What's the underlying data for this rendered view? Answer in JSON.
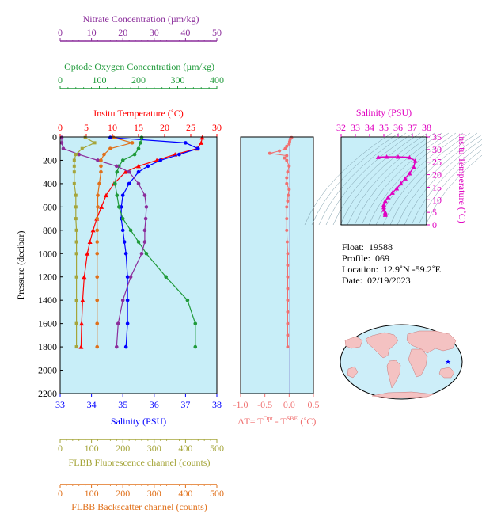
{
  "colors": {
    "nitrate": "#8b2d9b",
    "oxygen": "#1f9a3a",
    "temperature": "#ff0000",
    "salinity": "#0000ff",
    "fluorescence": "#a5a53a",
    "backscatter": "#e0701a",
    "delta_t": "#f07070",
    "magenta": "#e000c0",
    "panel_bg": "#c8eef8"
  },
  "axes": {
    "nitrate": {
      "label": "Nitrate Concentration (µm/kg)",
      "ticks": [
        "0",
        "10",
        "20",
        "30",
        "40",
        "50"
      ]
    },
    "oxygen": {
      "label": "Optode Oxygen Concentration (µm/kg)",
      "ticks": [
        "0",
        "100",
        "200",
        "300",
        "400"
      ]
    },
    "temperature": {
      "label": "Insitu Temperature (˚C)",
      "ticks": [
        "0",
        "5",
        "10",
        "15",
        "20",
        "25",
        "30"
      ]
    },
    "pressure": {
      "label": "Pressure (decibar)",
      "ticks": [
        "0",
        "200",
        "400",
        "600",
        "800",
        "1000",
        "1200",
        "1400",
        "1600",
        "1800",
        "2000",
        "2200"
      ]
    },
    "salinity": {
      "label": "Salinity (PSU)",
      "ticks": [
        "33",
        "34",
        "35",
        "36",
        "37",
        "38"
      ]
    },
    "delta_t": {
      "label_prefix": "ΔT= T",
      "label_sup1": "Opt",
      "label_mid": " - T",
      "label_sup2": "SBE",
      "label_suffix": " (˚C)",
      "ticks": [
        "-1.0",
        "-0.5",
        "0.0",
        "0.5"
      ]
    },
    "fluorescence": {
      "label": "FLBB Fluorescence channel (counts)",
      "ticks": [
        "0",
        "100",
        "200",
        "300",
        "400",
        "500"
      ]
    },
    "backscatter": {
      "label": "FLBB Backscatter channel (counts)",
      "ticks": [
        "0",
        "100",
        "200",
        "300",
        "400",
        "500"
      ]
    },
    "ts_salinity": {
      "label": "Salinity (PSU)",
      "ticks": [
        "32",
        "33",
        "34",
        "35",
        "36",
        "37",
        "38"
      ]
    },
    "ts_temperature": {
      "label": "Insitu Temperature (˚C)",
      "ticks": [
        "0",
        "5",
        "10",
        "15",
        "20",
        "25",
        "30",
        "35"
      ]
    }
  },
  "info": {
    "float_label": "Float:",
    "float_value": "19588",
    "profile_label": "Profile:",
    "profile_value": "069",
    "location_label": "Location:",
    "location_value": "12.9˚N  -59.2˚E",
    "date_label": "Date:",
    "date_value": "02/19/2023"
  },
  "chart_data": [
    {
      "type": "line",
      "title": "",
      "ylabel": "Pressure (decibar)",
      "ylim": [
        2200,
        0
      ],
      "pressure": [
        5,
        50,
        100,
        150,
        200,
        250,
        300,
        400,
        500,
        600,
        700,
        800,
        900,
        1000,
        1200,
        1400,
        1600,
        1800
      ],
      "series": [
        {
          "name": "Insitu Temperature (˚C)",
          "xlim": [
            0,
            30
          ],
          "values": [
            27.2,
            27.0,
            26.2,
            22.0,
            18.5,
            15.0,
            12.5,
            10.3,
            8.8,
            7.9,
            7.0,
            6.3,
            5.7,
            5.2,
            4.6,
            4.3,
            4.1,
            4.0
          ]
        },
        {
          "name": "Salinity (PSU)",
          "xlim": [
            33,
            38
          ],
          "values": [
            34.6,
            37.0,
            37.4,
            36.8,
            36.2,
            35.8,
            35.5,
            35.2,
            35.0,
            34.95,
            34.95,
            35.0,
            35.05,
            35.1,
            35.15,
            35.15,
            35.15,
            35.1
          ]
        },
        {
          "name": "Optode Oxygen Concentration (µm/kg)",
          "xlim": [
            0,
            400
          ],
          "values": [
            208,
            205,
            200,
            190,
            160,
            150,
            145,
            140,
            145,
            150,
            160,
            180,
            200,
            220,
            270,
            325,
            345,
            345
          ]
        },
        {
          "name": "Nitrate Concentration (µm/kg)",
          "xlim": [
            0,
            50
          ],
          "values": [
            0.5,
            0.5,
            1.0,
            6.0,
            12.0,
            18.0,
            22.0,
            25.0,
            27.0,
            27.5,
            27.3,
            27.0,
            27.0,
            26.0,
            22.5,
            20.0,
            18.5,
            18.0
          ]
        },
        {
          "name": "FLBB Fluorescence channel (counts)",
          "xlim": [
            0,
            500
          ],
          "values": [
            80,
            110,
            70,
            50,
            45,
            45,
            45,
            45,
            50,
            50,
            50,
            52,
            52,
            52,
            52,
            52,
            52,
            52
          ]
        },
        {
          "name": "FLBB Backscatter channel (counts)",
          "xlim": [
            0,
            500
          ],
          "values": [
            170,
            230,
            160,
            140,
            130,
            130,
            130,
            125,
            120,
            120,
            118,
            118,
            118,
            118,
            118,
            118,
            118,
            118
          ]
        }
      ]
    },
    {
      "type": "line",
      "title": "",
      "xlabel": "ΔT= TOpt - TSBE (˚C)",
      "xlim": [
        -1.0,
        0.5
      ],
      "ylim": [
        2200,
        0
      ],
      "pressure": [
        5,
        20,
        40,
        60,
        80,
        100,
        120,
        140,
        160,
        180,
        200,
        250,
        300,
        350,
        400,
        450,
        500,
        550,
        600,
        700,
        800,
        900,
        1000,
        1100,
        1200,
        1300,
        1400,
        1500,
        1600,
        1700,
        1800
      ],
      "values": [
        0.05,
        0.02,
        0.01,
        0.0,
        -0.05,
        -0.08,
        -0.2,
        -0.4,
        -0.05,
        -0.1,
        -0.05,
        0.0,
        -0.03,
        -0.05,
        -0.05,
        0.0,
        -0.02,
        -0.03,
        -0.05,
        -0.05,
        -0.05,
        -0.04,
        -0.03,
        -0.03,
        -0.03,
        -0.03,
        -0.03,
        -0.03,
        -0.03,
        -0.03,
        -0.03
      ]
    },
    {
      "type": "scatter",
      "title": "",
      "xlabel": "Salinity (PSU)",
      "ylabel": "Insitu Temperature (˚C)",
      "xlim": [
        32,
        38
      ],
      "ylim": [
        0,
        35
      ],
      "x": [
        34.6,
        35.2,
        36.0,
        36.8,
        37.2,
        37.1,
        36.8,
        36.5,
        36.2,
        35.9,
        35.6,
        35.3,
        35.1,
        35.0,
        35.0,
        35.0,
        35.1,
        35.1,
        35.1
      ],
      "y": [
        27.0,
        27.1,
        27.1,
        26.9,
        25.5,
        23.0,
        20.5,
        18.5,
        16.5,
        14.5,
        12.8,
        11.0,
        9.5,
        8.0,
        7.0,
        6.0,
        5.0,
        4.5,
        4.0
      ]
    }
  ]
}
